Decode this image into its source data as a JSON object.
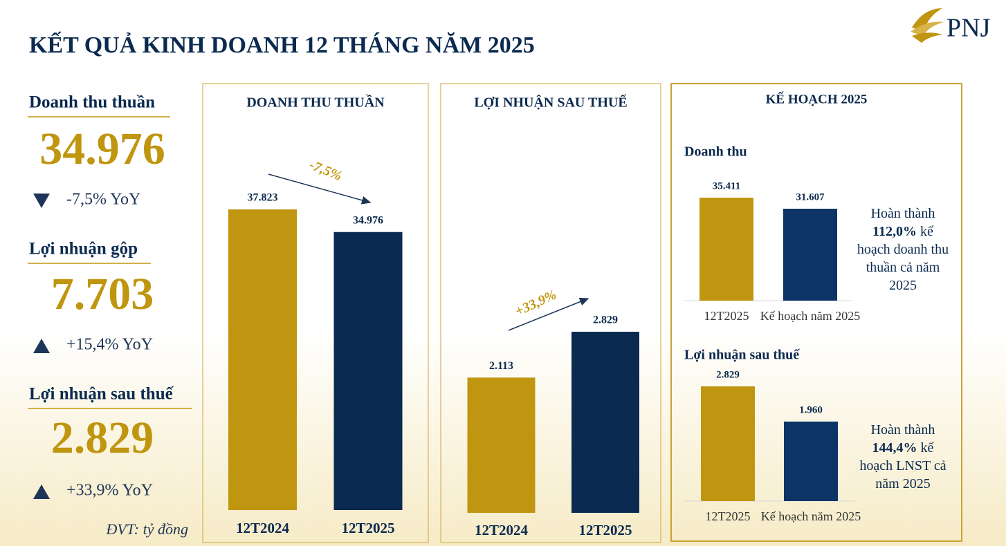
{
  "title": "KẾT QUẢ KINH DOANH 12 THÁNG NĂM 2025",
  "logo": "PNJ",
  "kpis": [
    {
      "label": "Doanh thu thuần",
      "value": "34.976",
      "change": "-7,5% YoY",
      "direction": "down"
    },
    {
      "label": "Lợi nhuận gộp",
      "value": "7.703",
      "change": "+15,4% YoY",
      "direction": "up"
    },
    {
      "label": "Lợi nhuận sau thuế",
      "value": "2.829",
      "change": "+33,9% YoY",
      "direction": "up"
    }
  ],
  "unit_note": "ĐVT: tỷ đồng",
  "plan_panel_title": "KẾ HOẠCH 2025",
  "chart_data": [
    {
      "type": "bar",
      "title": "DOANH THU THUẦN",
      "categories": [
        "12T2024",
        "12T2025"
      ],
      "values": [
        37823,
        34976
      ],
      "value_labels": [
        "37.823",
        "34.976"
      ],
      "colors": [
        "#c0950f",
        "#0b2a4f"
      ],
      "annotation": "-7,5%"
    },
    {
      "type": "bar",
      "title": "LỢI NHUẬN SAU THUẾ",
      "categories": [
        "12T2024",
        "12T2025"
      ],
      "values": [
        2113,
        2829
      ],
      "value_labels": [
        "2.113",
        "2.829"
      ],
      "colors": [
        "#c0950f",
        "#0b2a4f"
      ],
      "annotation": "+33,9%"
    },
    {
      "type": "bar",
      "title": "Doanh thu",
      "categories": [
        "12T2025",
        "Kế hoạch năm 2025"
      ],
      "values": [
        35411,
        31607
      ],
      "value_labels": [
        "35.411",
        "31.607"
      ],
      "colors": [
        "#c0950f",
        "#0d3466"
      ],
      "note": {
        "prefix": "Hoàn thành",
        "highlight": "112,0%",
        "suffix": "kế hoạch doanh thu thuần cả năm 2025"
      }
    },
    {
      "type": "bar",
      "title": "Lợi nhuận sau thuế",
      "categories": [
        "12T2025",
        "Kế hoạch năm 2025"
      ],
      "values": [
        2829,
        1960
      ],
      "value_labels": [
        "2.829",
        "1.960"
      ],
      "colors": [
        "#c0950f",
        "#0d3466"
      ],
      "note": {
        "prefix": "Hoàn thành",
        "highlight": "144,4%",
        "suffix": "kế hoạch LNST cả năm 2025"
      }
    }
  ]
}
